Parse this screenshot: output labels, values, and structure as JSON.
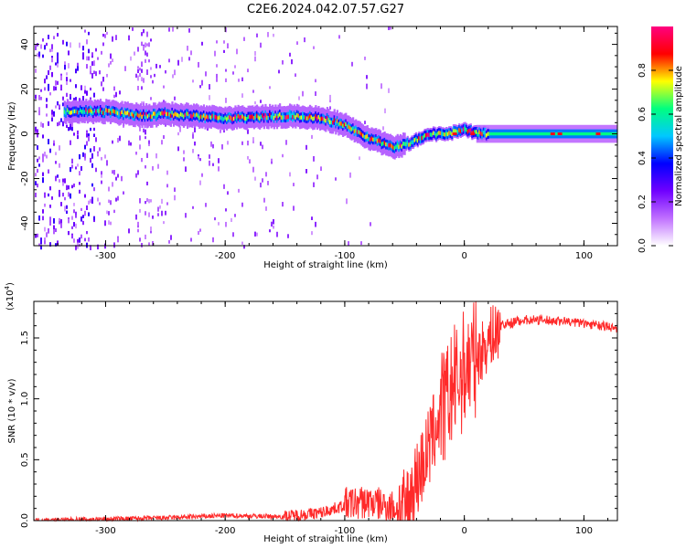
{
  "title": "C2E6.2024.042.07.57.G27",
  "chart_data": [
    {
      "type": "heatmap",
      "xlabel": "Height of straight line (km)",
      "ylabel": "Frequency (Hz)",
      "xlim": [
        -360,
        128
      ],
      "ylim": [
        -50,
        48
      ],
      "x_ticks": [
        -300,
        -200,
        -100,
        0,
        100
      ],
      "y_ticks": [
        -40,
        -20,
        0,
        20,
        40
      ],
      "colorbar": {
        "label": "Normalized spectral amplitude",
        "ticks": [
          "0.0",
          "0.2",
          "0.4",
          "0.6",
          "0.8"
        ],
        "range": [
          0,
          1
        ],
        "colormap": [
          "#ffffff",
          "#c070ff",
          "#7000ff",
          "#0000ff",
          "#00c8ff",
          "#00ff80",
          "#ffff00",
          "#ff0000",
          "#ff0080"
        ]
      },
      "ridge_trace": {
        "x": [
          -330,
          -300,
          -270,
          -250,
          -200,
          -150,
          -120,
          -100,
          -80,
          -60,
          -45,
          -35,
          -25,
          -15,
          -5,
          0,
          10,
          20,
          128
        ],
        "freq": [
          10,
          10,
          8,
          9,
          7,
          8,
          7,
          4,
          -2,
          -6,
          -4,
          -1,
          0,
          0,
          1,
          2,
          0,
          0,
          0
        ]
      }
    },
    {
      "type": "line",
      "xlabel": "Height of straight line (km)",
      "ylabel": "SNR (10 * v/v)",
      "scale_label": "(x10",
      "scale_exp": "4",
      "scale_close": ")",
      "xlim": [
        -360,
        128
      ],
      "ylim": [
        0,
        1.8
      ],
      "x_ticks": [
        -300,
        -200,
        -100,
        0,
        100
      ],
      "y_ticks": [
        "0.0",
        "0.5",
        "1.0",
        "1.5"
      ],
      "color": "#ff2a2a",
      "series": [
        {
          "x": [
            -360,
            -300,
            -250,
            -200,
            -150,
            -120,
            -100,
            -80,
            -60,
            -50,
            -40,
            -30,
            -20,
            -15,
            -10,
            -5,
            0,
            10,
            20,
            30,
            50,
            80,
            100,
            128
          ],
          "y": [
            0.0,
            0.01,
            0.02,
            0.04,
            0.03,
            0.06,
            0.12,
            0.14,
            0.1,
            0.03,
            0.3,
            0.55,
            0.85,
            0.9,
            1.05,
            1.1,
            1.2,
            1.3,
            1.45,
            1.6,
            1.65,
            1.64,
            1.62,
            1.58
          ]
        }
      ]
    }
  ]
}
